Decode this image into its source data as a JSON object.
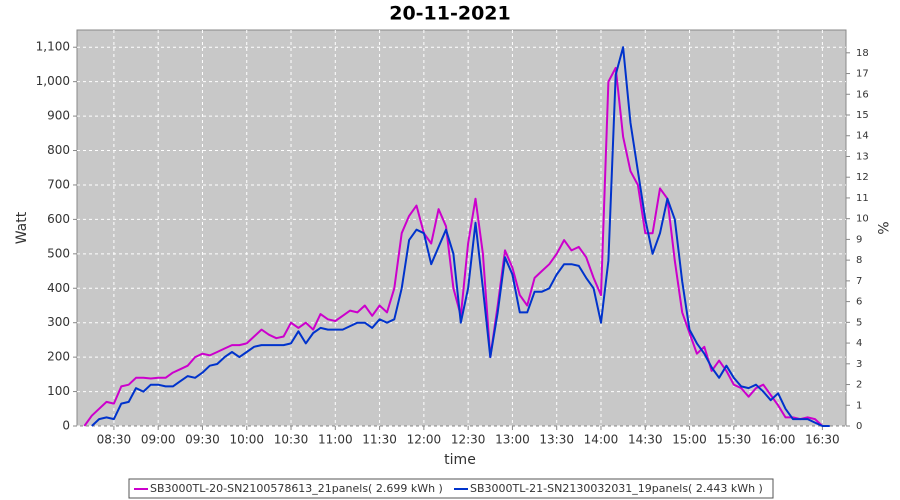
{
  "chart_data": {
    "type": "line",
    "title": "20-11-2021",
    "x_label": "time",
    "y_label": "Watt",
    "y2_label": "%",
    "x": [
      "08:10",
      "08:15",
      "08:20",
      "08:25",
      "08:30",
      "08:35",
      "08:40",
      "08:45",
      "08:50",
      "08:55",
      "09:00",
      "09:05",
      "09:10",
      "09:15",
      "09:20",
      "09:25",
      "09:30",
      "09:35",
      "09:40",
      "09:45",
      "09:50",
      "09:55",
      "10:00",
      "10:05",
      "10:10",
      "10:15",
      "10:20",
      "10:25",
      "10:30",
      "10:35",
      "10:40",
      "10:45",
      "10:50",
      "10:55",
      "11:00",
      "11:05",
      "11:10",
      "11:15",
      "11:20",
      "11:25",
      "11:30",
      "11:35",
      "11:40",
      "11:45",
      "11:50",
      "11:55",
      "12:00",
      "12:05",
      "12:10",
      "12:15",
      "12:20",
      "12:25",
      "12:30",
      "12:35",
      "12:40",
      "12:45",
      "12:50",
      "12:55",
      "13:00",
      "13:05",
      "13:10",
      "13:15",
      "13:20",
      "13:25",
      "13:30",
      "13:35",
      "13:40",
      "13:45",
      "13:50",
      "13:55",
      "14:00",
      "14:05",
      "14:10",
      "14:15",
      "14:20",
      "14:25",
      "14:30",
      "14:35",
      "14:40",
      "14:45",
      "14:50",
      "14:55",
      "15:00",
      "15:05",
      "15:10",
      "15:15",
      "15:20",
      "15:25",
      "15:30",
      "15:35",
      "15:40",
      "15:45",
      "15:50",
      "15:55",
      "16:00",
      "16:05",
      "16:10",
      "16:15",
      "16:20",
      "16:25",
      "16:30",
      "16:35"
    ],
    "series": [
      {
        "name": "SB3000TL-20-SN2100578613_21panels( 2.699 kWh )",
        "color": "#cc00cc",
        "values": [
          0,
          30,
          50,
          70,
          65,
          115,
          120,
          140,
          140,
          138,
          140,
          140,
          155,
          165,
          175,
          200,
          210,
          205,
          215,
          225,
          235,
          235,
          240,
          260,
          280,
          265,
          255,
          260,
          300,
          285,
          300,
          280,
          325,
          310,
          305,
          320,
          335,
          330,
          350,
          320,
          350,
          330,
          400,
          560,
          610,
          640,
          560,
          530,
          630,
          580,
          400,
          320,
          530,
          660,
          500,
          200,
          350,
          510,
          460,
          380,
          350,
          430,
          450,
          470,
          500,
          540,
          510,
          520,
          490,
          430,
          380,
          1000,
          1040,
          840,
          740,
          700,
          560,
          560,
          690,
          660,
          480,
          330,
          270,
          210,
          230,
          160,
          190,
          160,
          120,
          110,
          85,
          110,
          120,
          90,
          60,
          25,
          25,
          20,
          25,
          20,
          0,
          null
        ]
      },
      {
        "name": "SB3000TL-21-SN2130032031_19panels( 2.443 kWh )",
        "color": "#0033cc",
        "values": [
          null,
          0,
          20,
          25,
          20,
          65,
          70,
          110,
          100,
          120,
          120,
          115,
          115,
          130,
          145,
          140,
          155,
          175,
          180,
          200,
          215,
          200,
          215,
          230,
          235,
          235,
          235,
          235,
          240,
          275,
          240,
          270,
          285,
          280,
          280,
          280,
          290,
          300,
          300,
          285,
          310,
          300,
          310,
          400,
          540,
          570,
          560,
          470,
          520,
          570,
          500,
          300,
          400,
          590,
          400,
          200,
          330,
          490,
          440,
          330,
          330,
          390,
          390,
          400,
          440,
          470,
          470,
          465,
          430,
          400,
          300,
          480,
          1020,
          1100,
          880,
          740,
          600,
          500,
          560,
          660,
          600,
          420,
          280,
          240,
          210,
          170,
          140,
          175,
          140,
          115,
          110,
          120,
          100,
          75,
          95,
          50,
          20,
          20,
          20,
          10,
          0,
          0
        ]
      }
    ],
    "xlim": [
      "08:05",
      "16:46"
    ],
    "xticks": [
      "08:30",
      "09:00",
      "09:30",
      "10:00",
      "10:30",
      "11:00",
      "11:30",
      "12:00",
      "12:30",
      "13:00",
      "13:30",
      "14:00",
      "14:30",
      "15:00",
      "15:30",
      "16:00",
      "16:30"
    ],
    "ylim": [
      0,
      1150
    ],
    "yticks": [
      0,
      100,
      200,
      300,
      400,
      500,
      600,
      700,
      800,
      900,
      {
        "value": 1000,
        "label": "1,000"
      },
      {
        "value": 1100,
        "label": "1,100"
      }
    ],
    "y2lim": [
      0,
      19.1
    ],
    "y2ticks": [
      0,
      1,
      2,
      3,
      4,
      5,
      6,
      7,
      8,
      9,
      10,
      11,
      12,
      13,
      14,
      15,
      16,
      17,
      18
    ],
    "grid": true,
    "legend": "bottom"
  }
}
